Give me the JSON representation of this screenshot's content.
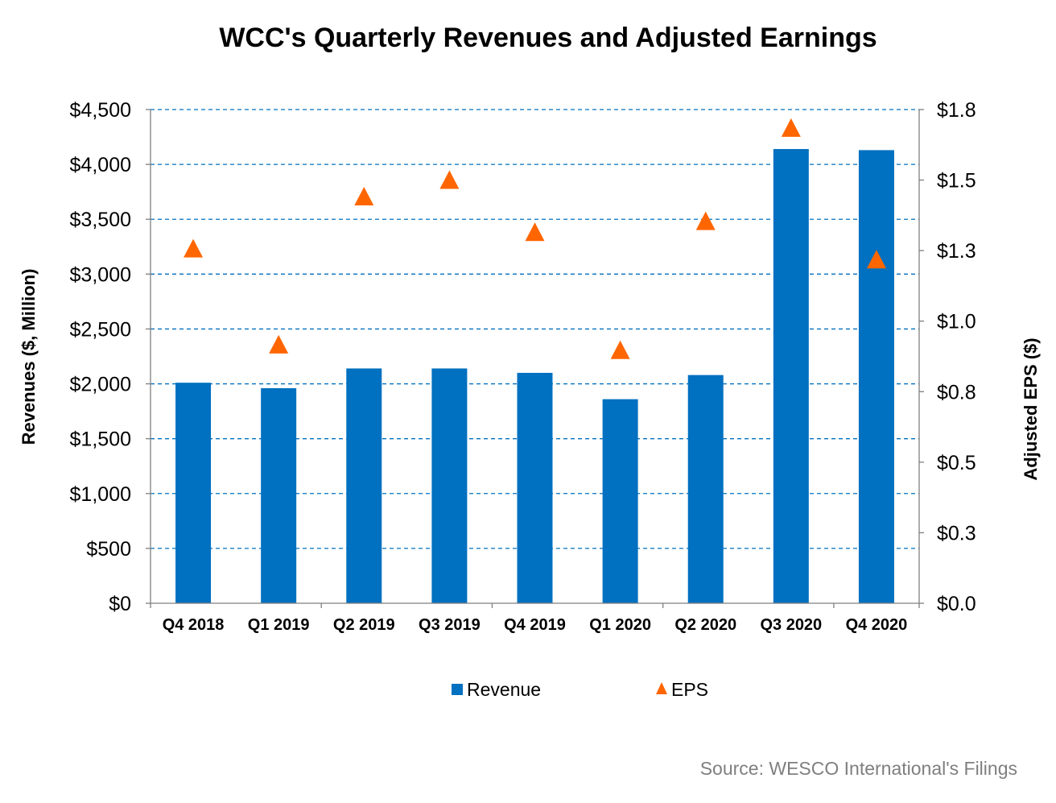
{
  "chart_data": {
    "type": "bar",
    "title": "WCC's Quarterly Revenues and Adjusted Earnings",
    "categories": [
      "Q4 2018",
      "Q1 2019",
      "Q2 2019",
      "Q3 2019",
      "Q4 2019",
      "Q1 2020",
      "Q2 2020",
      "Q3 2020",
      "Q4 2020"
    ],
    "series": [
      {
        "name": "Revenue",
        "type": "bar",
        "axis": "left",
        "color": "#0070c0",
        "values": [
          2010,
          1960,
          2140,
          2140,
          2100,
          1860,
          2080,
          4140,
          4130
        ]
      },
      {
        "name": "EPS",
        "type": "scatter",
        "marker": "triangle",
        "axis": "right",
        "color": "#ff6600",
        "values": [
          1.29,
          0.94,
          1.48,
          1.54,
          1.35,
          0.92,
          1.39,
          1.73,
          1.25
        ]
      }
    ],
    "ylabel": "Revenues ($, Million)",
    "ylim": [
      0,
      4500
    ],
    "yticks": [
      "$0",
      "$500",
      "$1,000",
      "$1,500",
      "$2,000",
      "$2,500",
      "$3,000",
      "$3,500",
      "$4,000",
      "$4,500"
    ],
    "y2label": "Adjusted EPS ($)",
    "y2lim": [
      0,
      1.8
    ],
    "y2ticks": [
      "$0.0",
      "$0.3",
      "$0.5",
      "$0.8",
      "$1.0",
      "$1.3",
      "$1.5",
      "$1.8"
    ],
    "grid": "dashed horizontal",
    "legend": "bottom-center",
    "source": "Source: WESCO International's Filings"
  }
}
